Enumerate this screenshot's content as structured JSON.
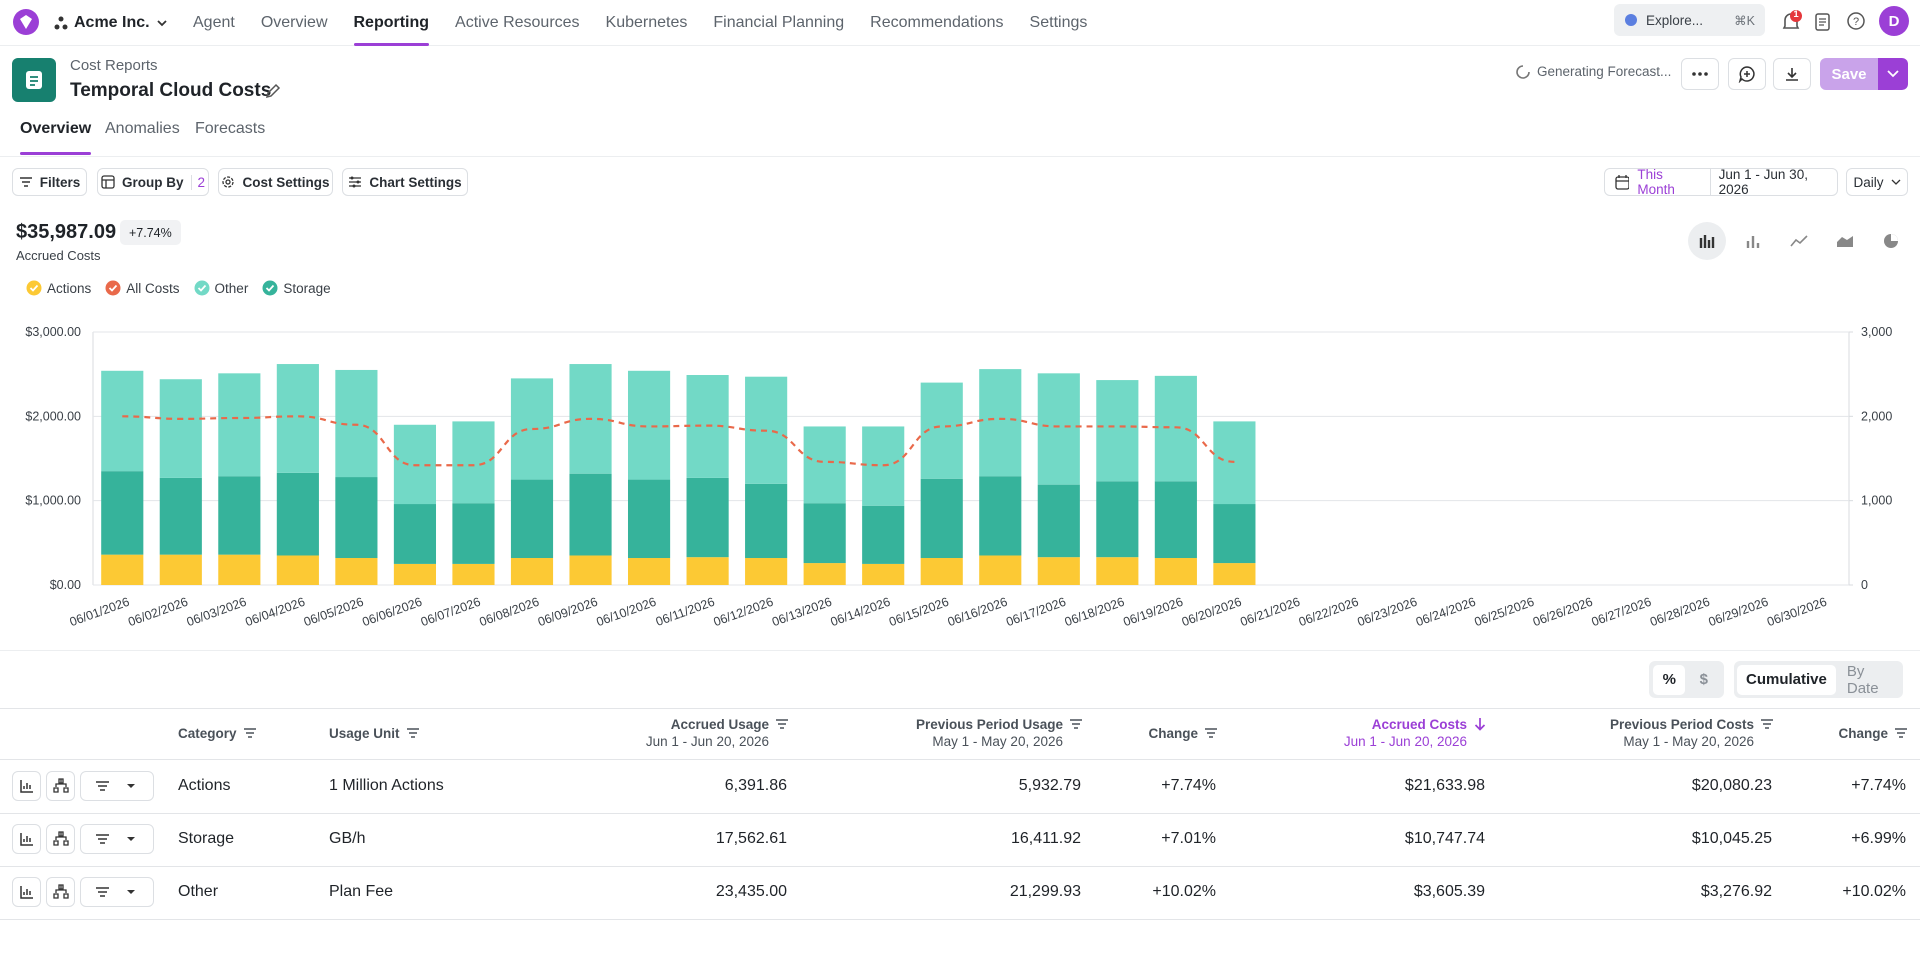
{
  "nav": {
    "org": "Acme Inc.",
    "items": [
      "Agent",
      "Overview",
      "Reporting",
      "Active Resources",
      "Kubernetes",
      "Financial Planning",
      "Recommendations",
      "Settings"
    ],
    "active": 2,
    "search": "Explore...",
    "shortcut": "⌘K",
    "notifications": "1",
    "avatar": "D"
  },
  "header": {
    "breadcrumb": "Cost Reports",
    "title": "Temporal Cloud Costs",
    "status": "Generating Forecast...",
    "save": "Save"
  },
  "tabs": {
    "items": [
      "Overview",
      "Anomalies",
      "Forecasts"
    ],
    "active": 0
  },
  "toolbar": {
    "filters": "Filters",
    "group_by": "Group By",
    "group_count": "2",
    "cost_settings": "Cost Settings",
    "chart_settings": "Chart Settings",
    "period": "This Month",
    "range": "Jun 1 - Jun 30, 2026",
    "granularity": "Daily"
  },
  "summary": {
    "total": "$35,987.09",
    "change": "+7.74%",
    "label": "Accrued Costs"
  },
  "chart_data": {
    "type": "bar",
    "stacked": true,
    "categories": [
      "06/01/2026",
      "06/02/2026",
      "06/03/2026",
      "06/04/2026",
      "06/05/2026",
      "06/06/2026",
      "06/07/2026",
      "06/08/2026",
      "06/09/2026",
      "06/10/2026",
      "06/11/2026",
      "06/12/2026",
      "06/13/2026",
      "06/14/2026",
      "06/15/2026",
      "06/16/2026",
      "06/17/2026",
      "06/18/2026",
      "06/19/2026",
      "06/20/2026",
      "06/21/2026",
      "06/22/2026",
      "06/23/2026",
      "06/24/2026",
      "06/25/2026",
      "06/26/2026",
      "06/27/2026",
      "06/28/2026",
      "06/29/2026",
      "06/30/2026"
    ],
    "series": [
      {
        "name": "Actions",
        "color": "#fcc934",
        "values": [
          360,
          360,
          360,
          350,
          320,
          250,
          250,
          320,
          350,
          320,
          330,
          320,
          260,
          250,
          320,
          350,
          330,
          330,
          320,
          260,
          null,
          null,
          null,
          null,
          null,
          null,
          null,
          null,
          null,
          null
        ]
      },
      {
        "name": "Storage",
        "color": "#36b39b",
        "values": [
          990,
          910,
          930,
          980,
          960,
          710,
          720,
          930,
          970,
          930,
          940,
          880,
          710,
          690,
          940,
          940,
          860,
          900,
          910,
          700,
          null,
          null,
          null,
          null,
          null,
          null,
          null,
          null,
          null,
          null
        ]
      },
      {
        "name": "Other",
        "color": "#72d9c6",
        "values": [
          1190,
          1170,
          1220,
          1290,
          1270,
          940,
          970,
          1200,
          1300,
          1290,
          1220,
          1270,
          910,
          940,
          1140,
          1270,
          1320,
          1200,
          1250,
          980,
          null,
          null,
          null,
          null,
          null,
          null,
          null,
          null,
          null,
          null
        ]
      },
      {
        "name": "All Costs",
        "color": "#e9694a",
        "type": "line",
        "dashed": true,
        "axis": "y2",
        "values": [
          2000,
          1970,
          1980,
          2000,
          1900,
          1420,
          1420,
          1850,
          1970,
          1880,
          1890,
          1830,
          1460,
          1420,
          1880,
          1970,
          1880,
          1880,
          1870,
          1460,
          null,
          null,
          null,
          null,
          null,
          null,
          null,
          null,
          null,
          null
        ]
      }
    ],
    "ylim": [
      0,
      3000
    ],
    "yticks": [
      {
        "value": 0,
        "label": "$0.00"
      },
      {
        "value": 1000,
        "label": "$1,000.00"
      },
      {
        "value": 2000,
        "label": "$2,000.00"
      },
      {
        "value": 3000,
        "label": "$3,000.00"
      }
    ],
    "y2lim": [
      0,
      3000
    ],
    "y2ticks": [
      0,
      {
        "value": 1000,
        "label": "1,000"
      },
      {
        "value": 2000,
        "label": "2,000"
      },
      {
        "value": 3000,
        "label": "3,000"
      }
    ],
    "grid": true
  },
  "table": {
    "toggles": [
      "%",
      "$"
    ],
    "views": [
      "Cumulative",
      "By Date"
    ],
    "sort_column": 5,
    "columns": [
      {
        "label": "Category"
      },
      {
        "label": "Usage Unit"
      },
      {
        "label": "Accrued Usage",
        "sub": "Jun 1 - Jun 20, 2026"
      },
      {
        "label": "Previous Period Usage",
        "sub": "May 1 - May 20, 2026"
      },
      {
        "label": "Change"
      },
      {
        "label": "Accrued Costs",
        "sub": "Jun 1 - Jun 20, 2026"
      },
      {
        "label": "Previous Period Costs",
        "sub": "May 1 - May 20, 2026"
      },
      {
        "label": "Change"
      }
    ],
    "rows": [
      [
        "Actions",
        "1 Million Actions",
        "6,391.86",
        "5,932.79",
        "+7.74%",
        "$21,633.98",
        "$20,080.23",
        "+7.74%"
      ],
      [
        "Storage",
        "GB/h",
        "17,562.61",
        "16,411.92",
        "+7.01%",
        "$10,747.74",
        "$10,045.25",
        "+6.99%"
      ],
      [
        "Other",
        "Plan Fee",
        "23,435.00",
        "21,299.93",
        "+10.02%",
        "$3,605.39",
        "$3,276.92",
        "+10.02%"
      ]
    ]
  }
}
